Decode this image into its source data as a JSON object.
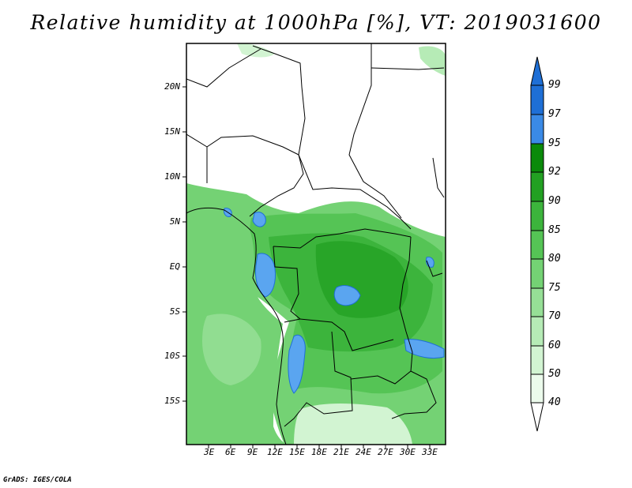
{
  "title": "Relative humidity at 1000hPa [%], VT: 2019031600",
  "lat_labels": [
    "20N",
    "15N",
    "10N",
    "5N",
    "EQ",
    "5S",
    "10S",
    "15S"
  ],
  "lon_labels": [
    "3E",
    "6E",
    "9E",
    "12E",
    "15E",
    "18E",
    "21E",
    "24E",
    "27E",
    "30E",
    "33E"
  ],
  "colorbar": {
    "levels": [
      "99",
      "97",
      "95",
      "92",
      "90",
      "85",
      "80",
      "75",
      "70",
      "60",
      "50",
      "40"
    ],
    "colors": [
      "#1e6fd6",
      "#3a8ae6",
      "#5aa5f0",
      "#0a8a0a",
      "#22a022",
      "#3cb43c",
      "#55c455",
      "#74d274",
      "#96df96",
      "#b6ebb6",
      "#d2f4d2",
      "#ecfbec",
      "#ffffff"
    ]
  },
  "credit": "GrADS: IGES/COLA"
}
